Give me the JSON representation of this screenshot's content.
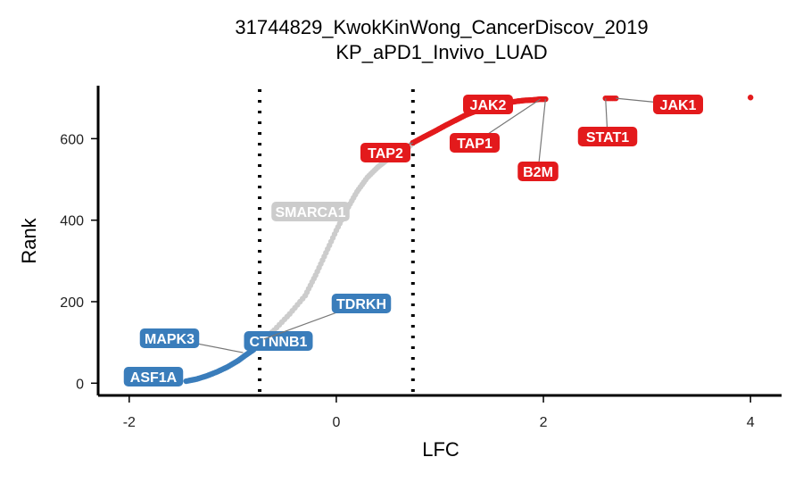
{
  "chart_data": {
    "type": "scatter",
    "title": "31744829_KwokKinWong_CancerDiscov_2019",
    "subtitle": "KP_aPD1_Invivo_LUAD",
    "xlabel": "LFC",
    "ylabel": "Rank",
    "xlim": [
      -2.3,
      4.3
    ],
    "ylim": [
      -30,
      730
    ],
    "x_ticks": [
      -2,
      0,
      2,
      4
    ],
    "x_tick_labels": [
      "-2",
      "0",
      "2",
      "4"
    ],
    "y_ticks": [
      0,
      200,
      400,
      600
    ],
    "y_tick_labels": [
      "0",
      "200",
      "400",
      "600"
    ],
    "thresholds": [
      -0.74,
      0.74
    ],
    "grid": false,
    "colors": {
      "negative": "#3a7dbb",
      "neutral": "#cccccc",
      "positive": "#e31a1c"
    },
    "series": [
      {
        "group": "negative",
        "color": "#3a7dbb",
        "points": [
          [
            -1.45,
            5
          ],
          [
            -1.35,
            10
          ],
          [
            -1.25,
            18
          ],
          [
            -1.15,
            28
          ],
          [
            -1.05,
            40
          ],
          [
            -0.95,
            55
          ],
          [
            -0.88,
            68
          ],
          [
            -0.8,
            82
          ],
          [
            -0.74,
            98
          ]
        ]
      },
      {
        "group": "neutral",
        "color": "#cccccc",
        "points": [
          [
            -0.74,
            98
          ],
          [
            -0.6,
            130
          ],
          [
            -0.45,
            170
          ],
          [
            -0.3,
            215
          ],
          [
            -0.2,
            265
          ],
          [
            -0.1,
            320
          ],
          [
            0.0,
            375
          ],
          [
            0.1,
            425
          ],
          [
            0.2,
            470
          ],
          [
            0.3,
            505
          ],
          [
            0.4,
            530
          ],
          [
            0.5,
            550
          ],
          [
            0.6,
            565
          ],
          [
            0.7,
            580
          ],
          [
            0.74,
            590
          ]
        ]
      },
      {
        "group": "positive",
        "color": "#e31a1c",
        "points": [
          [
            0.74,
            590
          ],
          [
            0.85,
            605
          ],
          [
            0.95,
            618
          ],
          [
            1.05,
            632
          ],
          [
            1.15,
            645
          ],
          [
            1.25,
            658
          ],
          [
            1.35,
            668
          ],
          [
            1.45,
            676
          ],
          [
            1.55,
            684
          ],
          [
            1.65,
            688
          ],
          [
            1.75,
            692
          ],
          [
            1.82,
            694
          ],
          [
            1.9,
            695
          ],
          [
            1.97,
            697
          ],
          [
            2.02,
            697
          ],
          [
            2.6,
            699
          ],
          [
            2.7,
            699
          ],
          [
            4.0,
            701
          ]
        ]
      }
    ],
    "labels": [
      {
        "text": "ASF1A",
        "group": "negative",
        "point": [
          -1.5,
          3
        ]
      },
      {
        "text": "MAPK3",
        "group": "negative",
        "point": [
          -0.9,
          75
        ]
      },
      {
        "text": "CTNNB1",
        "group": "negative",
        "point": [
          -0.75,
          100
        ]
      },
      {
        "text": "TDRKH",
        "group": "negative",
        "point": [
          -0.7,
          108
        ]
      },
      {
        "text": "SMARCA1",
        "group": "neutral",
        "point": [
          -0.05,
          410
        ]
      },
      {
        "text": "TAP2",
        "group": "positive",
        "point": [
          0.74,
          590
        ]
      },
      {
        "text": "JAK2",
        "group": "positive",
        "point": [
          1.35,
          670
        ]
      },
      {
        "text": "TAP1",
        "group": "positive",
        "point": [
          1.97,
          697
        ]
      },
      {
        "text": "B2M",
        "group": "positive",
        "point": [
          2.02,
          697
        ]
      },
      {
        "text": "STAT1",
        "group": "positive",
        "point": [
          2.6,
          699
        ]
      },
      {
        "text": "JAK1",
        "group": "positive",
        "point": [
          2.7,
          699
        ]
      }
    ]
  }
}
